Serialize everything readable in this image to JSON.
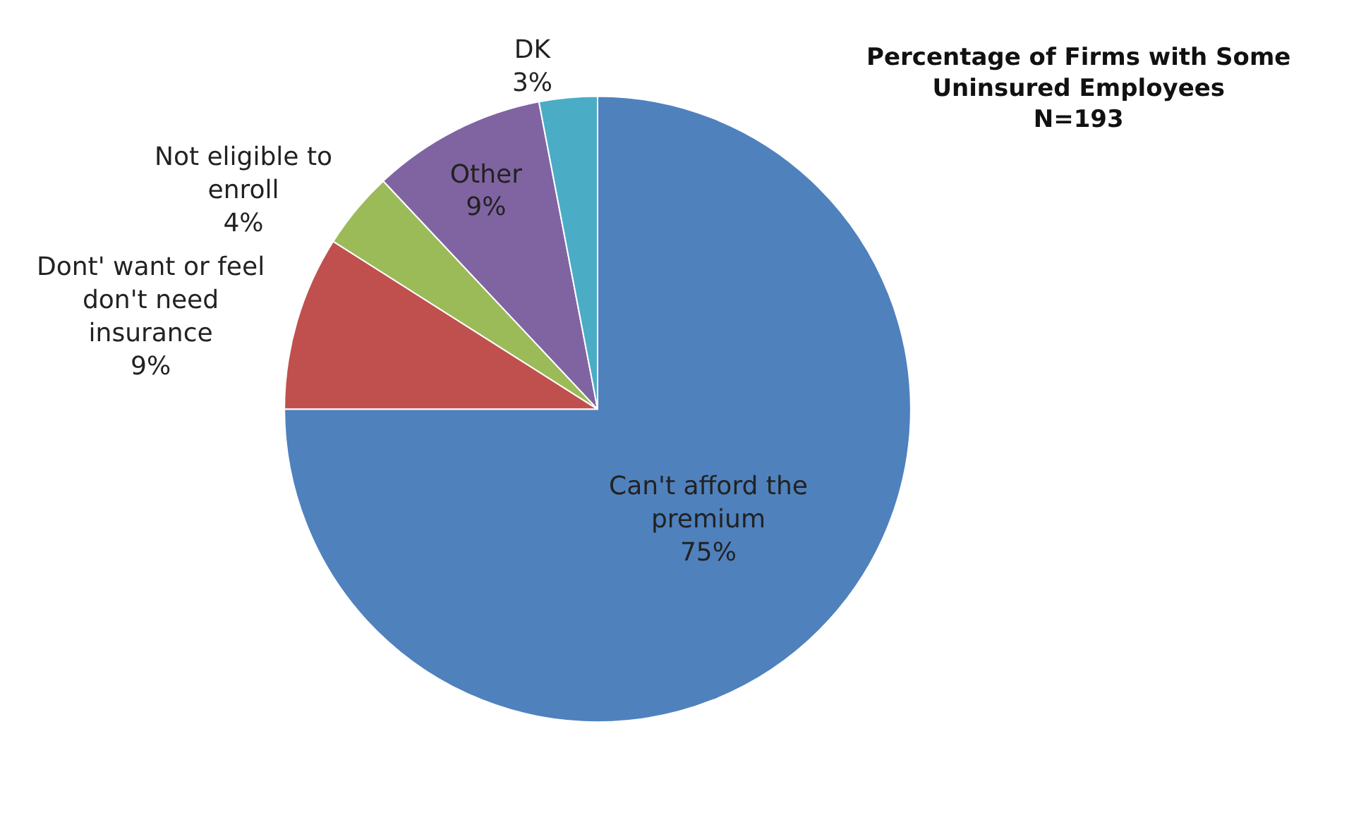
{
  "chart_data": {
    "type": "pie",
    "title": "Percentage of Firms with Some\nUninsured Employees\nN=193",
    "categories": [
      "Can't afford the premium",
      "Dont' want or feel don't need insurance",
      "Not eligible to enroll",
      "Other",
      "DK"
    ],
    "values": [
      75,
      9,
      4,
      9,
      3
    ],
    "value_labels": [
      "75%",
      "9%",
      "4%",
      "9%",
      "3%"
    ],
    "colors": [
      "#4f81bd",
      "#c0504d",
      "#9bbb59",
      "#8064a2",
      "#4bacc6"
    ],
    "legend": false
  }
}
